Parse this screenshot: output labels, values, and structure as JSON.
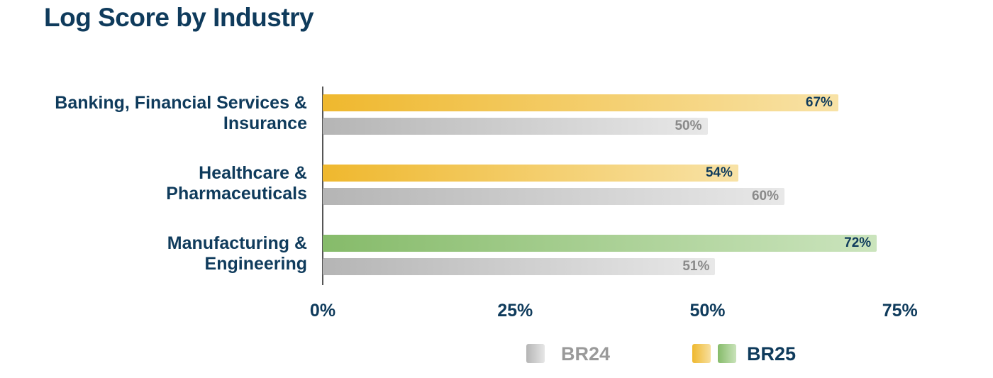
{
  "chart_data": {
    "type": "bar",
    "orientation": "horizontal",
    "title": "Log Score by Industry",
    "categories": [
      "Banking, Financial Services & Insurance",
      "Healthcare & Pharmaceuticals",
      "Manufacturing & Engineering"
    ],
    "category_lines": [
      [
        "Banking, Financial Services &",
        "Insurance"
      ],
      [
        "Healthcare &",
        "Pharmaceuticals"
      ],
      [
        "Manufacturing &",
        "Engineering"
      ]
    ],
    "series": [
      {
        "name": "BR25",
        "values": [
          67,
          54,
          72
        ],
        "labels": [
          "67%",
          "54%",
          "72%"
        ],
        "colors": [
          "#efb82e",
          "#efb82e",
          "#86bb6a"
        ]
      },
      {
        "name": "BR24",
        "values": [
          50,
          60,
          51
        ],
        "labels": [
          "50%",
          "60%",
          "51%"
        ],
        "colors": [
          "#b5b5b5",
          "#b5b5b5",
          "#b5b5b5"
        ]
      }
    ],
    "xlim": [
      0,
      75
    ],
    "xticks": [
      "0%",
      "25%",
      "50%",
      "75%"
    ],
    "xtick_values": [
      0,
      25,
      50,
      75
    ],
    "grid": false,
    "legend_position": "bottom-right",
    "legend": [
      {
        "label": "BR24",
        "color": "#9a9a9a"
      },
      {
        "label": "BR25",
        "color": "#0f3b5c"
      }
    ]
  }
}
